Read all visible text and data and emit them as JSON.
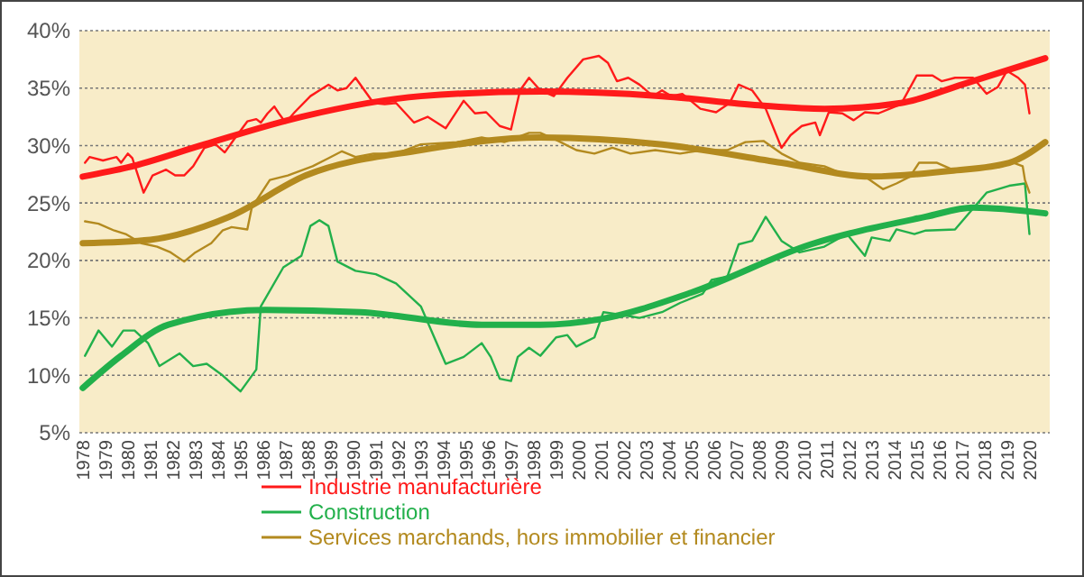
{
  "chart_data": {
    "type": "line",
    "legend": "bottom",
    "grid": "y",
    "xlim": [
      1977.85,
      2020.9
    ],
    "ylim": [
      5,
      40
    ],
    "xticks": [
      1978,
      1979,
      1980,
      1981,
      1982,
      1983,
      1984,
      1985,
      1986,
      1987,
      1988,
      1989,
      1990,
      1991,
      1992,
      1993,
      1994,
      1995,
      1996,
      1997,
      1998,
      1999,
      2000,
      2001,
      2002,
      2003,
      2004,
      2005,
      2006,
      2007,
      2008,
      2009,
      2010,
      2011,
      2012,
      2013,
      2014,
      2015,
      2016,
      2017,
      2018,
      2019,
      2020
    ],
    "yticks": [
      {
        "value": 5,
        "label": "5%"
      },
      {
        "value": 10,
        "label": "10%"
      },
      {
        "value": 15,
        "label": "15%"
      },
      {
        "value": 20,
        "label": "20%"
      },
      {
        "value": 25,
        "label": "25%"
      },
      {
        "value": 30,
        "label": "30%"
      },
      {
        "value": 35,
        "label": "35%"
      },
      {
        "value": 40,
        "label": "40%"
      }
    ],
    "series": [
      {
        "name": "Industrie manufacturière",
        "color": "#ff1a1a",
        "x": [
          1978.1,
          1978.3,
          1978.9,
          1979.3,
          1979.5,
          1979.7,
          1980.0,
          1980.2,
          1980.7,
          1981.1,
          1981.7,
          1982.1,
          1982.5,
          1982.9,
          1983.4,
          1983.9,
          1984.3,
          1984.7,
          1985.3,
          1985.7,
          1985.9,
          1986.2,
          1986.5,
          1986.7,
          1987.0,
          1987.4,
          1988.1,
          1988.5,
          1988.9,
          1989.3,
          1989.7,
          1990.1,
          1990.5,
          1990.9,
          1991.4,
          1991.9,
          1992.7,
          1993.3,
          1994.1,
          1994.9,
          1995.4,
          1995.9,
          1996.5,
          1997.0,
          1997.4,
          1997.8,
          1998.3,
          1998.9,
          1999.5,
          2000.2,
          2000.9,
          2001.3,
          2001.7,
          2002.2,
          2002.7,
          2003.3,
          2003.7,
          2004.1,
          2004.6,
          2005.4,
          2006.1,
          2006.7,
          2007.1,
          2007.7,
          2008.3,
          2009.0,
          2009.4,
          2009.9,
          2010.5,
          2010.7,
          2011.1,
          2011.7,
          2012.2,
          2012.7,
          2013.3,
          2013.8,
          2014.3,
          2015.0,
          2015.7,
          2016.1,
          2016.7,
          2017.5,
          2018.1,
          2018.6,
          2019.0,
          2019.5,
          2019.8,
          2020.0
        ],
        "values": [
          28.5,
          29.0,
          28.7,
          28.9,
          29.0,
          28.5,
          29.3,
          28.9,
          25.9,
          27.4,
          27.9,
          27.4,
          27.4,
          28.2,
          29.8,
          30.1,
          29.4,
          30.5,
          32.1,
          32.3,
          32.0,
          32.8,
          33.4,
          32.8,
          32.0,
          32.9,
          34.3,
          34.8,
          35.3,
          34.8,
          35.0,
          35.9,
          34.8,
          33.7,
          33.6,
          33.7,
          32.0,
          32.5,
          31.5,
          33.9,
          32.8,
          32.9,
          31.7,
          31.4,
          34.8,
          35.9,
          34.8,
          34.3,
          35.9,
          37.5,
          37.8,
          37.2,
          35.6,
          35.9,
          35.3,
          34.3,
          34.8,
          34.3,
          34.5,
          33.2,
          32.9,
          33.7,
          35.3,
          34.8,
          33.2,
          29.8,
          30.9,
          31.7,
          32.0,
          30.9,
          32.9,
          32.8,
          32.2,
          32.9,
          32.8,
          33.2,
          33.6,
          36.1,
          36.1,
          35.6,
          35.9,
          35.9,
          34.5,
          35.1,
          36.5,
          35.9,
          35.3,
          32.8
        ]
      },
      {
        "name": "Construction",
        "color": "#22b04b",
        "x": [
          1978.1,
          1978.7,
          1979.3,
          1979.8,
          1980.3,
          1980.9,
          1981.4,
          1982.3,
          1982.9,
          1983.5,
          1984.2,
          1985.0,
          1985.7,
          1985.9,
          1986.9,
          1987.7,
          1988.1,
          1988.5,
          1988.9,
          1989.3,
          1990.1,
          1991.0,
          1991.9,
          1993.0,
          1994.1,
          1994.9,
          1995.7,
          1996.1,
          1996.5,
          1997.0,
          1997.3,
          1997.8,
          1998.3,
          1999.0,
          1999.5,
          1999.9,
          2000.7,
          2001.1,
          2002.1,
          2002.7,
          2003.7,
          2004.5,
          2005.5,
          2005.9,
          2006.6,
          2007.1,
          2007.7,
          2008.3,
          2009.0,
          2009.8,
          2010.9,
          2011.9,
          2012.7,
          2013.0,
          2013.8,
          2014.1,
          2014.9,
          2015.4,
          2016.7,
          2018.1,
          2019.1,
          2019.8,
          2020.0
        ],
        "values": [
          11.7,
          13.9,
          12.5,
          13.9,
          13.9,
          12.8,
          10.8,
          11.9,
          10.8,
          11.0,
          10.0,
          8.6,
          10.5,
          16.0,
          19.4,
          20.4,
          23.0,
          23.5,
          23.0,
          19.9,
          19.1,
          18.8,
          18.0,
          16.0,
          11.0,
          11.6,
          12.8,
          11.6,
          9.7,
          9.5,
          11.6,
          12.4,
          11.7,
          13.3,
          13.5,
          12.5,
          13.3,
          15.5,
          15.2,
          15.0,
          15.5,
          16.3,
          17.1,
          18.3,
          18.6,
          21.4,
          21.7,
          23.8,
          21.7,
          20.7,
          21.2,
          22.3,
          20.4,
          22.0,
          21.7,
          22.7,
          22.3,
          22.6,
          22.7,
          25.9,
          26.5,
          26.7,
          22.3
        ]
      },
      {
        "name": "Services marchands, hors immobilier et financier",
        "color": "#b38a1f",
        "x": [
          1978.1,
          1978.7,
          1979.4,
          1979.9,
          1980.6,
          1981.3,
          1981.9,
          1982.5,
          1983.0,
          1983.7,
          1984.2,
          1984.6,
          1985.3,
          1985.5,
          1986.3,
          1987.1,
          1988.2,
          1988.9,
          1989.5,
          1990.1,
          1990.9,
          1991.9,
          1993.0,
          1994.6,
          1995.7,
          1996.7,
          1997.8,
          1998.3,
          1999.1,
          1999.9,
          2000.7,
          2001.5,
          2002.3,
          2003.4,
          2004.5,
          2005.5,
          2006.6,
          2007.4,
          2008.2,
          2009.0,
          2009.8,
          2010.9,
          2011.9,
          2012.7,
          2013.5,
          2014.1,
          2014.7,
          2015.1,
          2015.9,
          2016.7,
          2017.5,
          2018.6,
          2019.3,
          2019.7,
          2019.8,
          2020.0
        ],
        "values": [
          23.4,
          23.2,
          22.6,
          22.3,
          21.5,
          21.2,
          20.7,
          19.9,
          20.7,
          21.5,
          22.6,
          22.9,
          22.7,
          24.6,
          27.0,
          27.4,
          28.2,
          28.9,
          29.5,
          29.0,
          29.3,
          29.3,
          30.1,
          30.3,
          30.7,
          30.3,
          31.1,
          31.1,
          30.4,
          29.6,
          29.3,
          29.8,
          29.3,
          29.6,
          29.3,
          29.6,
          29.6,
          30.3,
          30.4,
          29.3,
          28.5,
          28.2,
          27.4,
          27.3,
          26.2,
          26.7,
          27.3,
          28.5,
          28.5,
          27.8,
          28.1,
          28.1,
          28.5,
          28.2,
          27.0,
          25.9
        ]
      },
      {
        "color": "#ff1a1a",
        "x": [
          1978,
          1980,
          1983.4,
          1987.7,
          1993,
          1998.3,
          2003.7,
          2008,
          2010.9,
          2014.3,
          2017,
          2020.7
        ],
        "values": [
          27.3,
          28.1,
          30.1,
          32.5,
          34.3,
          34.7,
          34.3,
          33.5,
          33.2,
          33.7,
          35.3,
          37.6
        ]
      },
      {
        "color": "#22b04b",
        "x": [
          1978,
          1979.7,
          1981.8,
          1986.1,
          1990.3,
          1995.7,
          1998.3,
          2001,
          2005,
          2010.3,
          2015.4,
          2017.5,
          2020.7
        ],
        "values": [
          8.9,
          11.7,
          14.4,
          15.7,
          15.5,
          14.4,
          14.4,
          14.9,
          17.2,
          21.4,
          23.8,
          24.6,
          24.1
        ]
      },
      {
        "color": "#b38a1f",
        "x": [
          1978,
          1981,
          1984.5,
          1987.9,
          1993,
          1998.3,
          2003.7,
          2009,
          2013,
          2016.5,
          2019.1,
          2020.7
        ],
        "values": [
          21.5,
          21.8,
          23.8,
          27.4,
          29.6,
          30.7,
          30.1,
          28.5,
          27.3,
          27.8,
          28.5,
          30.3
        ]
      }
    ]
  }
}
